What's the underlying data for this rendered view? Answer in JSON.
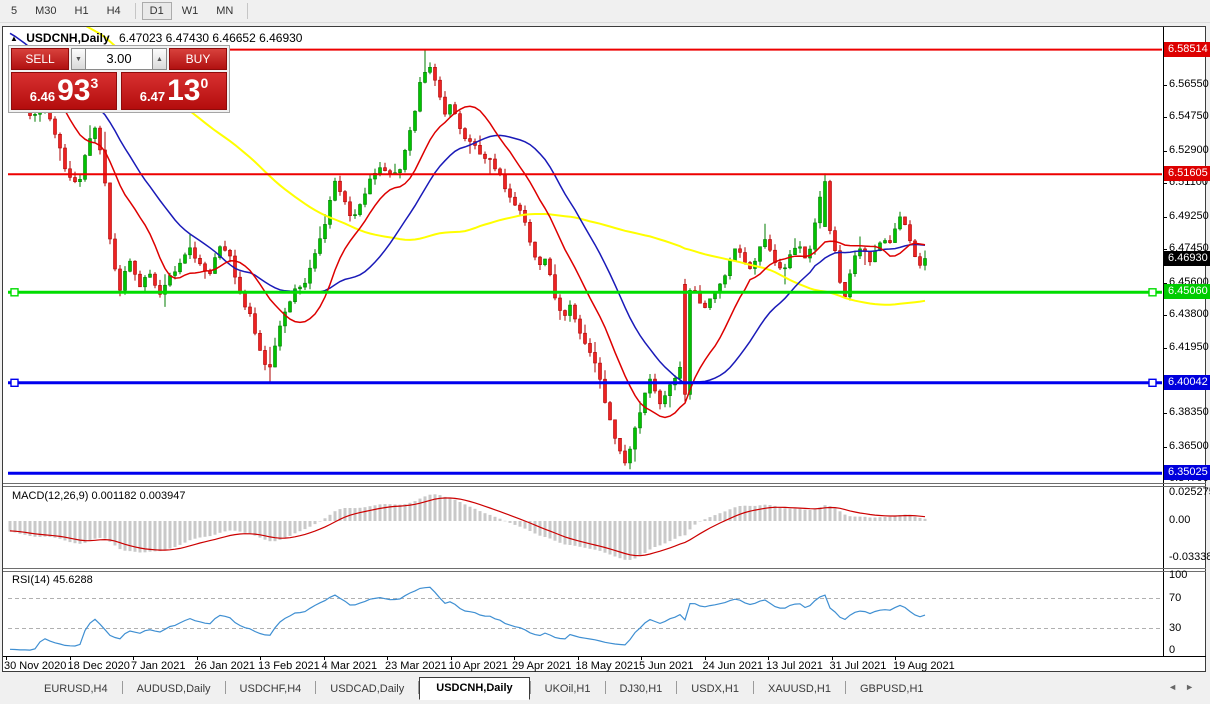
{
  "toolbar": {
    "timeframes": [
      "5",
      "M30",
      "H1",
      "H4",
      "D1",
      "W1",
      "MN"
    ],
    "active": "D1"
  },
  "window": {
    "title": {
      "symbol": "USDCNH,Daily",
      "ohlc": "6.47023 6.47430 6.46652 6.46930"
    }
  },
  "trade_panel": {
    "sell_label": "SELL",
    "buy_label": "BUY",
    "volume": "3.00",
    "sell_price": {
      "small": "6.46",
      "big": "93",
      "sup": "3"
    },
    "buy_price": {
      "small": "6.47",
      "big": "13",
      "sup": "0"
    }
  },
  "price_axis": {
    "ticks": [
      "6.58350",
      "6.56550",
      "6.54750",
      "6.52900",
      "6.51100",
      "6.49250",
      "6.47450",
      "6.45600",
      "6.43800",
      "6.41950",
      "6.40150",
      "6.38350",
      "6.36500",
      "6.34700"
    ],
    "badges": [
      {
        "text": "6.58514",
        "price": 6.58514,
        "color": "#dd0000",
        "fg": "#ffffff"
      },
      {
        "text": "6.51605",
        "price": 6.51605,
        "color": "#dd0000",
        "fg": "#ffffff"
      },
      {
        "text": "6.46930",
        "price": 6.4693,
        "color": "#000000",
        "fg": "#ffffff"
      },
      {
        "text": "6.45060",
        "price": 6.4506,
        "color": "#00cc00",
        "fg": "#ffffff"
      },
      {
        "text": "6.40042",
        "price": 6.40042,
        "color": "#0000dd",
        "fg": "#ffffff"
      },
      {
        "text": "6.35025",
        "price": 6.35025,
        "color": "#0000dd",
        "fg": "#ffffff"
      }
    ]
  },
  "hlines": [
    {
      "price": 6.58514,
      "color": "#ee0000",
      "width": 2,
      "handles": false
    },
    {
      "price": 6.51605,
      "color": "#ee0000",
      "width": 2,
      "handles": false
    },
    {
      "price": 6.4506,
      "color": "#00dd00",
      "width": 3,
      "handles": true
    },
    {
      "price": 6.40042,
      "color": "#0000ee",
      "width": 3,
      "handles": true
    },
    {
      "price": 6.35025,
      "color": "#0000ee",
      "width": 3,
      "handles": false
    }
  ],
  "dates": [
    "30 Nov 2020",
    "18 Dec 2020",
    "7 Jan 2021",
    "26 Jan 2021",
    "13 Feb 2021",
    "4 Mar 2021",
    "23 Mar 2021",
    "10 Apr 2021",
    "29 Apr 2021",
    "18 May 2021",
    "5 Jun 2021",
    "24 Jun 2021",
    "13 Jul 2021",
    "31 Jul 2021",
    "19 Aug 2021"
  ],
  "macd": {
    "label": "MACD(12,26,9) 0.001182 0.003947",
    "axis": [
      "0.025275",
      "0.00",
      "-0.033388"
    ]
  },
  "rsi": {
    "label": "RSI(14) 45.6288",
    "axis": [
      "100",
      "70",
      "30",
      "0"
    ],
    "levels": [
      70,
      30
    ]
  },
  "tabs": {
    "items": [
      "EURUSD,H4",
      "AUDUSD,Daily",
      "USDCHF,H4",
      "USDCAD,Daily",
      "USDCNH,Daily",
      "UKOil,H1",
      "DJ30,H1",
      "USDX,H1",
      "XAUUSD,H1",
      "GBPUSD,H1"
    ],
    "active": "USDCNH,Daily"
  },
  "colors": {
    "bull": "#00c300",
    "bull_stroke": "#007c00",
    "bear": "#ee2222",
    "bear_stroke": "#ad0000",
    "ma_fast": "#dd0000",
    "ma_mid": "#1a1ab8",
    "ma_slow": "#ffff00",
    "macd_hist": "#c9c9c9",
    "macd_signal": "#cc0000",
    "rsi_line": "#3f8fd2",
    "level_dash": "#b0b0b0"
  },
  "chart_data": {
    "type": "candlestick",
    "symbol": "USDCNH",
    "timeframe": "Daily",
    "last_ohlc": {
      "open": 6.47023,
      "high": 6.4743,
      "low": 6.46652,
      "close": 6.4693
    },
    "visible_range": {
      "start": "30 Nov 2020",
      "end": "25 Aug 2021"
    },
    "ylim": [
      6.3459,
      6.5943
    ],
    "price_path": [
      [
        10,
        6.572
      ],
      [
        20,
        6.559
      ],
      [
        32,
        6.547
      ],
      [
        44,
        6.5555
      ],
      [
        56,
        6.538
      ],
      [
        68,
        6.515
      ],
      [
        78,
        6.509
      ],
      [
        88,
        6.536
      ],
      [
        96,
        6.542
      ],
      [
        104,
        6.517
      ],
      [
        112,
        6.468
      ],
      [
        120,
        6.452
      ],
      [
        130,
        6.469
      ],
      [
        140,
        6.455
      ],
      [
        150,
        6.462
      ],
      [
        160,
        6.449
      ],
      [
        170,
        6.459
      ],
      [
        180,
        6.468
      ],
      [
        190,
        6.474
      ],
      [
        200,
        6.467
      ],
      [
        210,
        6.461
      ],
      [
        220,
        6.477
      ],
      [
        230,
        6.469
      ],
      [
        240,
        6.449
      ],
      [
        250,
        6.437
      ],
      [
        260,
        6.419
      ],
      [
        268,
        6.405
      ],
      [
        276,
        6.424
      ],
      [
        286,
        6.442
      ],
      [
        296,
        6.452
      ],
      [
        306,
        6.457
      ],
      [
        316,
        6.474
      ],
      [
        326,
        6.49
      ],
      [
        335,
        6.513
      ],
      [
        344,
        6.502
      ],
      [
        352,
        6.49
      ],
      [
        362,
        6.502
      ],
      [
        372,
        6.515
      ],
      [
        382,
        6.52
      ],
      [
        392,
        6.514
      ],
      [
        402,
        6.522
      ],
      [
        412,
        6.543
      ],
      [
        420,
        6.566
      ],
      [
        428,
        6.576
      ],
      [
        436,
        6.569
      ],
      [
        444,
        6.55
      ],
      [
        452,
        6.557
      ],
      [
        460,
        6.541
      ],
      [
        470,
        6.534
      ],
      [
        480,
        6.528
      ],
      [
        490,
        6.524
      ],
      [
        500,
        6.515
      ],
      [
        510,
        6.502
      ],
      [
        520,
        6.496
      ],
      [
        530,
        6.48
      ],
      [
        538,
        6.465
      ],
      [
        546,
        6.471
      ],
      [
        554,
        6.45
      ],
      [
        562,
        6.437
      ],
      [
        570,
        6.442
      ],
      [
        578,
        6.43
      ],
      [
        586,
        6.422
      ],
      [
        594,
        6.415
      ],
      [
        602,
        6.396
      ],
      [
        610,
        6.379
      ],
      [
        618,
        6.366
      ],
      [
        626,
        6.355
      ],
      [
        634,
        6.372
      ],
      [
        642,
        6.39
      ],
      [
        650,
        6.401
      ],
      [
        656,
        6.394
      ],
      [
        662,
        6.387
      ],
      [
        668,
        6.397
      ],
      [
        674,
        6.402
      ],
      [
        680,
        6.41
      ],
      [
        686,
        6.449
      ],
      [
        694,
        6.452
      ],
      [
        702,
        6.44
      ],
      [
        710,
        6.446
      ],
      [
        718,
        6.451
      ],
      [
        726,
        6.461
      ],
      [
        734,
        6.476
      ],
      [
        742,
        6.471
      ],
      [
        750,
        6.462
      ],
      [
        758,
        6.474
      ],
      [
        766,
        6.479
      ],
      [
        774,
        6.468
      ],
      [
        782,
        6.461
      ],
      [
        790,
        6.471
      ],
      [
        798,
        6.477
      ],
      [
        806,
        6.467
      ],
      [
        814,
        6.485
      ],
      [
        822,
        6.508
      ],
      [
        828,
        6.49
      ],
      [
        834,
        6.477
      ],
      [
        840,
        6.457
      ],
      [
        846,
        6.447
      ],
      [
        852,
        6.466
      ],
      [
        858,
        6.476
      ],
      [
        864,
        6.473
      ],
      [
        870,
        6.467
      ],
      [
        876,
        6.476
      ],
      [
        882,
        6.48
      ],
      [
        888,
        6.477
      ],
      [
        894,
        6.483
      ],
      [
        900,
        6.494
      ],
      [
        906,
        6.488
      ],
      [
        912,
        6.476
      ],
      [
        918,
        6.466
      ],
      [
        925,
        6.4693
      ]
    ],
    "features": [
      {
        "i": 52,
        "low": 6.401
      },
      {
        "i": 83,
        "high": 6.5851
      },
      {
        "i": 84,
        "high": 6.578
      },
      {
        "i": 124,
        "low": 6.3525
      },
      {
        "i": 135,
        "open": 6.455,
        "close": 6.394,
        "high": 6.458,
        "low": 6.39
      },
      {
        "i": 163,
        "open": 6.487,
        "close": 6.512,
        "high": 6.5165
      }
    ],
    "indicators": {
      "macd": "MACD(12,26,9)",
      "rsi": "RSI(14)",
      "moving_averages": [
        "fast-red",
        "mid-blue",
        "slow-yellow"
      ]
    }
  }
}
